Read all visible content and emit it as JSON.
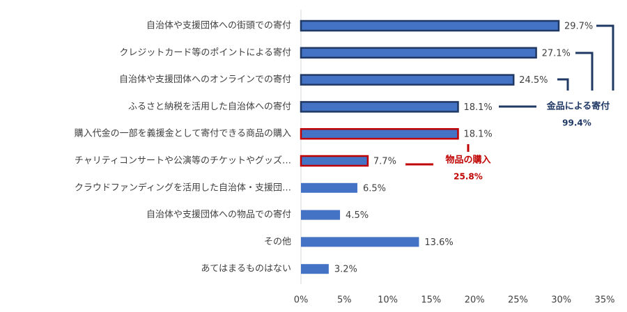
{
  "chart_data": {
    "type": "bar",
    "orientation": "horizontal",
    "categories": [
      "自治体や支援団体への街頭での寄付",
      "クレジットカード等のポイントによる寄付",
      "自治体や支援団体へのオンラインでの寄付",
      "ふるさと納税を活用した自治体への寄付",
      "購入代金の一部を義援金として寄付できる商品の購入",
      "チャリティコンサートや公演等のチケットやグッズ…",
      "クラウドファンディングを活用した自治体・支援団…",
      "自治体や支援団体への物品での寄付",
      "その他",
      "あてはまるものはない"
    ],
    "values": [
      29.7,
      27.1,
      24.5,
      18.1,
      18.1,
      7.7,
      6.5,
      4.5,
      13.6,
      3.2
    ],
    "value_labels": [
      "29.7%",
      "27.1%",
      "24.5%",
      "18.1%",
      "18.1%",
      "7.7%",
      "6.5%",
      "4.5%",
      "13.6%",
      "3.2%"
    ],
    "color": "#4472c4",
    "edgecolors": [
      "#1f3864",
      "#1f3864",
      "#1f3864",
      "#1f3864",
      "#c00000",
      "#c00000",
      null,
      null,
      null,
      null
    ],
    "xlim": [
      0,
      35
    ],
    "xticks": [
      {
        "value": 0,
        "label": "0%"
      },
      {
        "value": 5,
        "label": "5%"
      },
      {
        "value": 10,
        "label": "10%"
      },
      {
        "value": 15,
        "label": "15%"
      },
      {
        "value": 20,
        "label": "20%"
      },
      {
        "value": 25,
        "label": "25%"
      },
      {
        "value": 30,
        "label": "30%"
      },
      {
        "value": 35,
        "label": "35%"
      }
    ],
    "grid": false,
    "annotations": [
      {
        "text": "金品による寄付",
        "subtext": "99.4%",
        "color": "#1f3864"
      },
      {
        "text": "物品の購入",
        "subtext": "25.8%",
        "color": "#c00000"
      }
    ]
  }
}
